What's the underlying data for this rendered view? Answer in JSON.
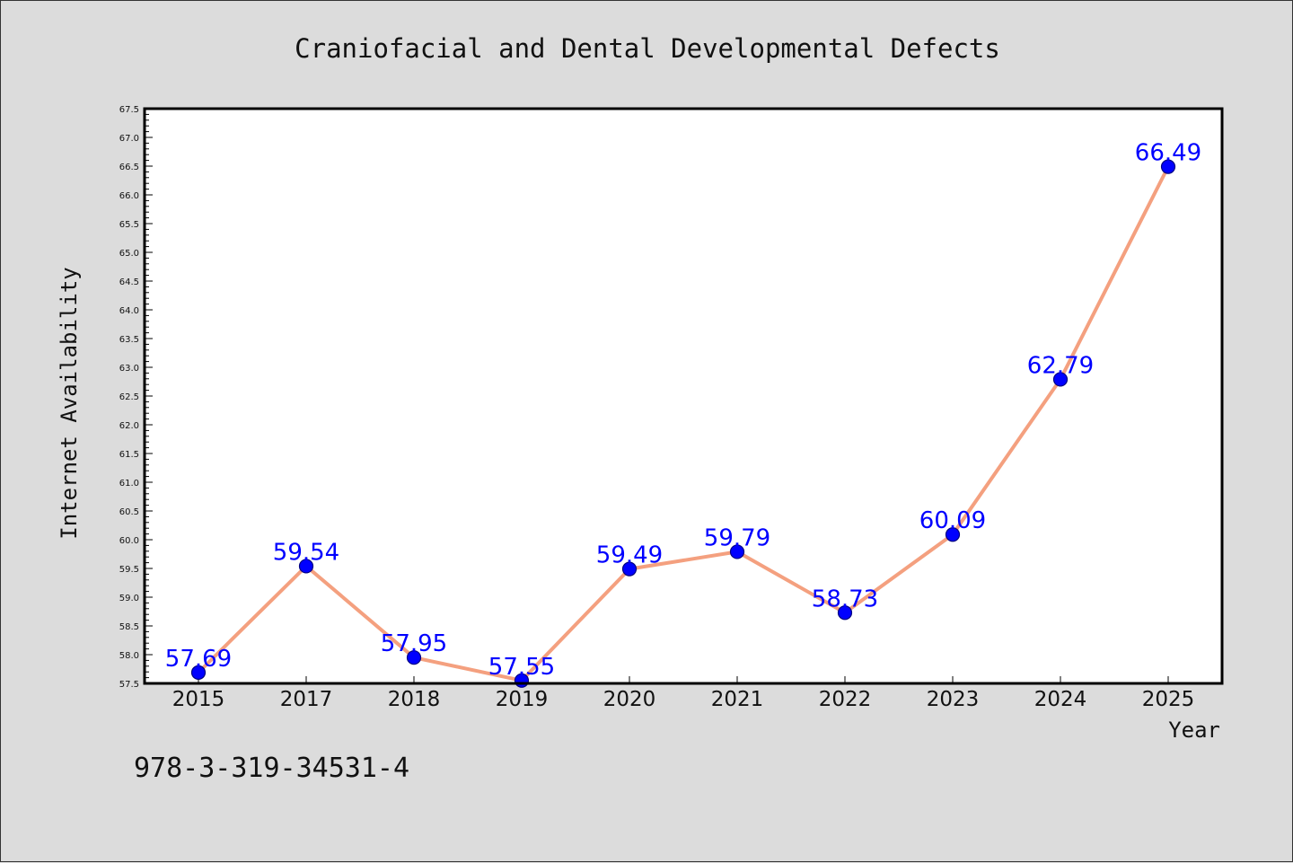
{
  "footer_code": "978-3-319-34531-4",
  "chart_data": {
    "type": "line",
    "title": "Craniofacial and Dental Developmental Defects",
    "xlabel": "Year",
    "ylabel": "Internet Availability",
    "categories": [
      "2015",
      "2017",
      "2018",
      "2019",
      "2020",
      "2021",
      "2022",
      "2023",
      "2024",
      "2025"
    ],
    "values": [
      57.69,
      59.54,
      57.95,
      57.55,
      59.49,
      59.79,
      58.73,
      60.09,
      62.79,
      66.49
    ],
    "data_labels": [
      "57.69",
      "59.54",
      "57.95",
      "57.55",
      "59.49",
      "59.79",
      "58.73",
      "60.09",
      "62.79",
      "66.49"
    ],
    "ylim": [
      57.5,
      67.5
    ],
    "y_ticks": [
      "57.5",
      "58.0",
      "58.5",
      "59.0",
      "59.5",
      "60.0",
      "60.5",
      "61.0",
      "61.5",
      "62.0",
      "62.5",
      "63.0",
      "63.5",
      "64.0",
      "64.5",
      "65.0",
      "65.5",
      "66.0",
      "66.5",
      "67.0",
      "67.5"
    ],
    "grid": false,
    "colors": {
      "line": "#f4a07f",
      "marker": "#0000ff",
      "marker_edge": "#000080",
      "data_label": "#0000ff",
      "plot_background": "#ffffff",
      "page_background": "#dcdcdc"
    }
  }
}
